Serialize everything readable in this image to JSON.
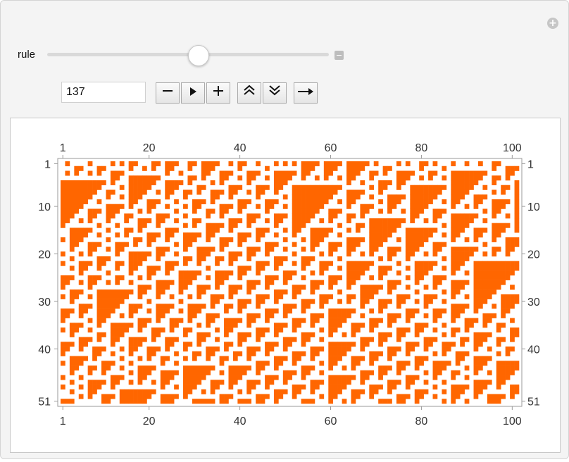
{
  "manipulate": {
    "slider_label": "rule",
    "rule_value": "137",
    "slider_fraction": 0.537
  },
  "controls": {
    "minus_icon": "minus-icon",
    "play_icon": "play-icon",
    "plus_icon": "plus-icon",
    "faster_icon": "double-chevron-up-icon",
    "slower_icon": "double-chevron-down-icon",
    "direction_icon": "right-arrow-icon",
    "add_icon": "plus-circle-icon",
    "collapse_icon": "minus-square-icon"
  },
  "colors": {
    "cell": "#ff6600",
    "background": "#ffffff",
    "panel": "#f4f4f4"
  },
  "plot": {
    "x_ticks": [
      "1",
      "20",
      "40",
      "60",
      "80",
      "100"
    ],
    "y_ticks": [
      "1",
      "10",
      "20",
      "30",
      "40",
      "51"
    ]
  },
  "chart_data": {
    "type": "heatmap",
    "description": "Elementary cellular automaton array plot",
    "rule": 137,
    "columns": 101,
    "rows": 51,
    "x_ticks": [
      1,
      20,
      40,
      60,
      80,
      100
    ],
    "y_ticks": [
      1,
      10,
      20,
      30,
      40,
      51
    ],
    "cell_color": "#ff6600",
    "empty_color": "#ffffff"
  }
}
